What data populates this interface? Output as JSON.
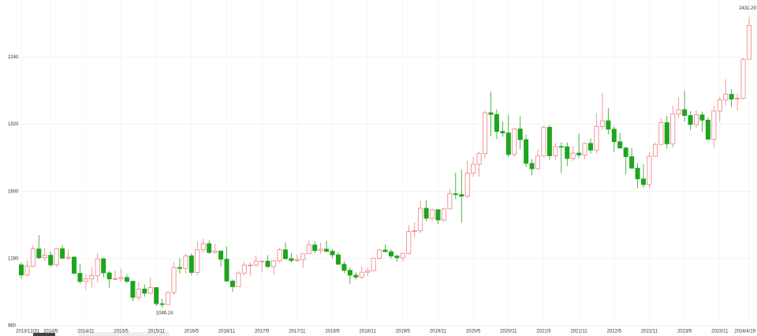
{
  "chart_data": {
    "type": "candlestick",
    "categories": [
      "2013/12/31",
      null,
      null,
      null,
      null,
      "2014/5",
      null,
      null,
      null,
      null,
      null,
      "2014/11",
      null,
      null,
      null,
      null,
      null,
      "2015/5",
      null,
      null,
      null,
      null,
      null,
      "2015/11",
      null,
      null,
      null,
      null,
      null,
      "2016/5",
      null,
      null,
      null,
      null,
      null,
      "2016/11",
      null,
      null,
      null,
      null,
      null,
      "2017/5",
      null,
      null,
      null,
      null,
      null,
      "2017/11",
      null,
      null,
      null,
      null,
      null,
      "2018/5",
      null,
      null,
      null,
      null,
      null,
      "2018/11",
      null,
      null,
      null,
      null,
      null,
      "2019/5",
      null,
      null,
      null,
      null,
      null,
      "2019/11",
      null,
      null,
      null,
      null,
      null,
      "2020/5",
      null,
      null,
      null,
      null,
      null,
      "2020/11",
      null,
      null,
      null,
      null,
      null,
      "2021/5",
      null,
      null,
      null,
      null,
      null,
      "2021/11",
      null,
      null,
      null,
      null,
      null,
      "2022/5",
      null,
      null,
      null,
      null,
      null,
      "2022/11",
      null,
      null,
      null,
      null,
      null,
      "2023/5",
      null,
      null,
      null,
      null,
      null,
      "2023/11",
      null,
      null,
      null,
      null,
      "2024/4/19"
    ],
    "open": [
      1250,
      1202,
      1244,
      1326,
      1284,
      1296,
      1250,
      1327,
      1282,
      1287,
      1210,
      1171,
      1183,
      1199,
      1279,
      1212,
      1183,
      1184,
      1190,
      1172,
      1095,
      1135,
      1115,
      1142,
      1065,
      1061,
      1118,
      1238,
      1233,
      1293,
      1214,
      1322,
      1351,
      1309,
      1316,
      1277,
      1173,
      1146,
      1211,
      1249,
      1249,
      1268,
      1268,
      1242,
      1269,
      1322,
      1280,
      1271,
      1275,
      1303,
      1345,
      1318,
      1325,
      1315,
      1298,
      1253,
      1224,
      1201,
      1192,
      1215,
      1222,
      1282,
      1321,
      1313,
      1292,
      1284,
      1305,
      1409,
      1413,
      1520,
      1472,
      1513,
      1464,
      1517,
      1589,
      1585,
      1577,
      1687,
      1730,
      1781,
      1975,
      1967,
      1886,
      1879,
      1776,
      1898,
      1847,
      1734,
      1708,
      1769,
      1906,
      1770,
      1814,
      1813,
      1757,
      1783,
      1774,
      1829,
      1797,
      1909,
      1937,
      1897,
      1837,
      1807,
      1766,
      1711,
      1660,
      1633,
      1768,
      1824,
      1928,
      1827,
      1969,
      1990,
      1962,
      1919,
      1965,
      1940,
      1849,
      1983,
      2036,
      2063,
      2040,
      2044,
      2230
    ],
    "high": [
      1262,
      1270,
      1345,
      1392,
      1331,
      1315,
      1330,
      1345,
      1323,
      1292,
      1255,
      1205,
      1238,
      1307,
      1285,
      1220,
      1224,
      1232,
      1205,
      1175,
      1170,
      1157,
      1191,
      1144,
      1088,
      1125,
      1262,
      1282,
      1303,
      1305,
      1362,
      1375,
      1367,
      1352,
      1318,
      1338,
      1180,
      1220,
      1264,
      1262,
      1295,
      1270,
      1296,
      1272,
      1331,
      1358,
      1306,
      1299,
      1306,
      1366,
      1362,
      1356,
      1365,
      1326,
      1310,
      1266,
      1237,
      1214,
      1243,
      1237,
      1285,
      1326,
      1347,
      1325,
      1298,
      1306,
      1439,
      1453,
      1555,
      1557,
      1518,
      1516,
      1524,
      1611,
      1689,
      1704,
      1747,
      1765,
      1789,
      1984,
      2075,
      1992,
      1933,
      1966,
      1906,
      1959,
      1871,
      1755,
      1798,
      1913,
      1916,
      1832,
      1834,
      1834,
      1814,
      1877,
      1831,
      1853,
      1974,
      2070,
      1998,
      1910,
      1879,
      1814,
      1808,
      1735,
      1730,
      1786,
      1833,
      1949,
      1960,
      2009,
      2048,
      2079,
      1983,
      1987,
      1980,
      1953,
      2009,
      2052,
      2135,
      2088,
      2065,
      2236,
      2431.29
    ],
    "low": [
      1185,
      1195,
      1240,
      1277,
      1268,
      1240,
      1240,
      1280,
      1273,
      1205,
      1160,
      1132,
      1142,
      1167,
      1190,
      1142,
      1176,
      1170,
      1162,
      1077,
      1080,
      1098,
      1110,
      1053,
      1046.24,
      1060,
      1107,
      1208,
      1208,
      1200,
      1200,
      1310,
      1302,
      1303,
      1241,
      1171,
      1122,
      1146,
      1200,
      1195,
      1240,
      1214,
      1236,
      1204,
      1262,
      1275,
      1261,
      1264,
      1236,
      1302,
      1307,
      1303,
      1310,
      1282,
      1250,
      1211,
      1160,
      1180,
      1183,
      1196,
      1221,
      1276,
      1311,
      1281,
      1266,
      1267,
      1301,
      1382,
      1400,
      1459,
      1458,
      1445,
      1454,
      1517,
      1563,
      1451,
      1568,
      1670,
      1670,
      1757,
      1863,
      1849,
      1860,
      1764,
      1766,
      1802,
      1717,
      1677,
      1705,
      1765,
      1750,
      1750,
      1688,
      1721,
      1746,
      1759,
      1753,
      1780,
      1781,
      1895,
      1872,
      1787,
      1805,
      1681,
      1710,
      1615,
      1618,
      1617,
      1765,
      1823,
      1804,
      1810,
      1950,
      1932,
      1893,
      1903,
      1884,
      1846,
      1810,
      1931,
      2010,
      2002,
      1985,
      2039,
      2228
    ],
    "close": [
      1202,
      1244,
      1326,
      1284,
      1296,
      1250,
      1327,
      1282,
      1287,
      1210,
      1171,
      1183,
      1199,
      1279,
      1212,
      1183,
      1184,
      1190,
      1172,
      1095,
      1135,
      1115,
      1142,
      1065,
      1061,
      1118,
      1238,
      1233,
      1293,
      1214,
      1322,
      1351,
      1309,
      1316,
      1277,
      1173,
      1146,
      1211,
      1249,
      1249,
      1268,
      1268,
      1242,
      1269,
      1322,
      1280,
      1271,
      1275,
      1303,
      1345,
      1318,
      1325,
      1315,
      1298,
      1253,
      1224,
      1201,
      1192,
      1215,
      1222,
      1282,
      1321,
      1313,
      1292,
      1284,
      1305,
      1409,
      1413,
      1520,
      1472,
      1513,
      1464,
      1517,
      1589,
      1585,
      1577,
      1687,
      1730,
      1781,
      1975,
      1967,
      1886,
      1879,
      1776,
      1898,
      1847,
      1734,
      1708,
      1769,
      1906,
      1770,
      1814,
      1813,
      1757,
      1783,
      1774,
      1829,
      1797,
      1909,
      1937,
      1897,
      1837,
      1807,
      1766,
      1711,
      1660,
      1633,
      1768,
      1824,
      1928,
      1827,
      1969,
      1990,
      1962,
      1919,
      1965,
      1940,
      1849,
      1983,
      2036,
      2063,
      2040,
      2044,
      2230,
      2391
    ],
    "up_color": "#f08080",
    "down_color": "#1ea51e",
    "ylim": [
      960,
      2520
    ],
    "yticks": [
      960,
      1280,
      1600,
      1920,
      2240
    ],
    "grid": true
  }
}
